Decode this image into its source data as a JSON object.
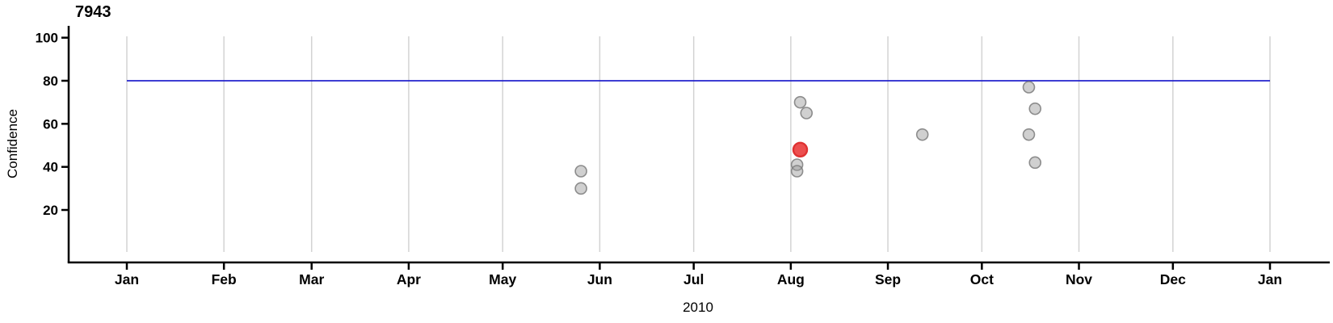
{
  "chart": {
    "title": "7943"
  },
  "chart_data": {
    "type": "scatter",
    "title": "7943",
    "xlabel": "2010",
    "ylabel": "Confidence",
    "x_axis": {
      "unit": "months of 2010 through Jan 2011",
      "tick_labels": [
        "Jan",
        "Feb",
        "Mar",
        "Apr",
        "May",
        "Jun",
        "Jul",
        "Aug",
        "Sep",
        "Oct",
        "Nov",
        "Dec",
        "Jan"
      ],
      "tick_day_of_year": [
        0,
        31,
        59,
        90,
        120,
        151,
        181,
        212,
        243,
        273,
        304,
        334,
        365
      ],
      "domain_days": [
        0,
        365
      ],
      "grid": true
    },
    "y_axis": {
      "ticks": [
        20,
        40,
        60,
        80,
        100
      ],
      "visible_range": [
        -5,
        106
      ]
    },
    "reference_line": {
      "value": 80,
      "color": "#2222cd"
    },
    "points": [
      {
        "date": "May 25",
        "day_of_year": 145,
        "confidence": 38,
        "highlight": false
      },
      {
        "date": "May 25",
        "day_of_year": 145,
        "confidence": 30,
        "highlight": false
      },
      {
        "date": "Aug 3",
        "day_of_year": 215,
        "confidence": 70,
        "highlight": false
      },
      {
        "date": "Aug 5",
        "day_of_year": 217,
        "confidence": 65,
        "highlight": false
      },
      {
        "date": "Aug 2",
        "day_of_year": 214,
        "confidence": 41,
        "highlight": false
      },
      {
        "date": "Aug 2",
        "day_of_year": 214,
        "confidence": 38,
        "highlight": false
      },
      {
        "date": "Sep 11",
        "day_of_year": 254,
        "confidence": 55,
        "highlight": false
      },
      {
        "date": "Oct 15",
        "day_of_year": 288,
        "confidence": 77,
        "highlight": false
      },
      {
        "date": "Oct 17",
        "day_of_year": 290,
        "confidence": 67,
        "highlight": false
      },
      {
        "date": "Oct 15",
        "day_of_year": 288,
        "confidence": 55,
        "highlight": false
      },
      {
        "date": "Oct 17",
        "day_of_year": 290,
        "confidence": 42,
        "highlight": false
      },
      {
        "date": "Aug 3",
        "day_of_year": 215,
        "confidence": 48,
        "highlight": true
      }
    ],
    "legend": "none",
    "style": {
      "point_fill": "rgba(150,150,150,0.45)",
      "point_stroke": "rgba(125,125,125,0.85)",
      "highlight_fill": "#ec4f4f",
      "highlight_stroke": "#df3232",
      "reference_line": "#2222cd",
      "gridline": "#d3d3d3",
      "axis": "#000000",
      "text": "#000000",
      "background": "#ffffff"
    }
  }
}
